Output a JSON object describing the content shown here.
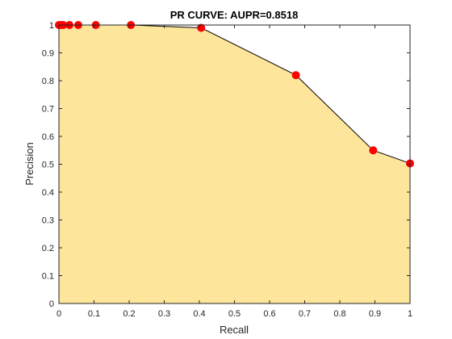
{
  "chart_data": {
    "type": "area",
    "title": "PR CURVE: AUPR=0.8518",
    "xlabel": "Recall",
    "ylabel": "Precision",
    "xlim": [
      0,
      1
    ],
    "ylim": [
      0,
      1
    ],
    "xticks": [
      0,
      0.1,
      0.2,
      0.3,
      0.4,
      0.5,
      0.6,
      0.7,
      0.8,
      0.9,
      1
    ],
    "xtick_labels": [
      "0",
      "0.1",
      "0.2",
      "0.3",
      "0.4",
      "0.5",
      "0.6",
      "0.7",
      "0.8",
      "0.9",
      "1"
    ],
    "yticks": [
      0,
      0.1,
      0.2,
      0.3,
      0.4,
      0.5,
      0.6,
      0.7,
      0.8,
      0.9,
      1
    ],
    "ytick_labels": [
      "0",
      "0.1",
      "0.2",
      "0.3",
      "0.4",
      "0.5",
      "0.6",
      "0.7",
      "0.8",
      "0.9",
      "1"
    ],
    "grid": false,
    "series": [
      {
        "x": [
          0,
          0.005,
          0.012,
          0.03,
          0.055,
          0.105,
          0.205,
          0.405,
          0.675,
          0.895,
          1.0
        ],
        "y": [
          1.0,
          1.0,
          1.0,
          1.0,
          1.0,
          1.0,
          1.0,
          0.99,
          0.82,
          0.55,
          0.503
        ]
      }
    ],
    "colors": {
      "fill": "#fde59b",
      "line": "#000000",
      "marker": "#ff0000"
    }
  }
}
